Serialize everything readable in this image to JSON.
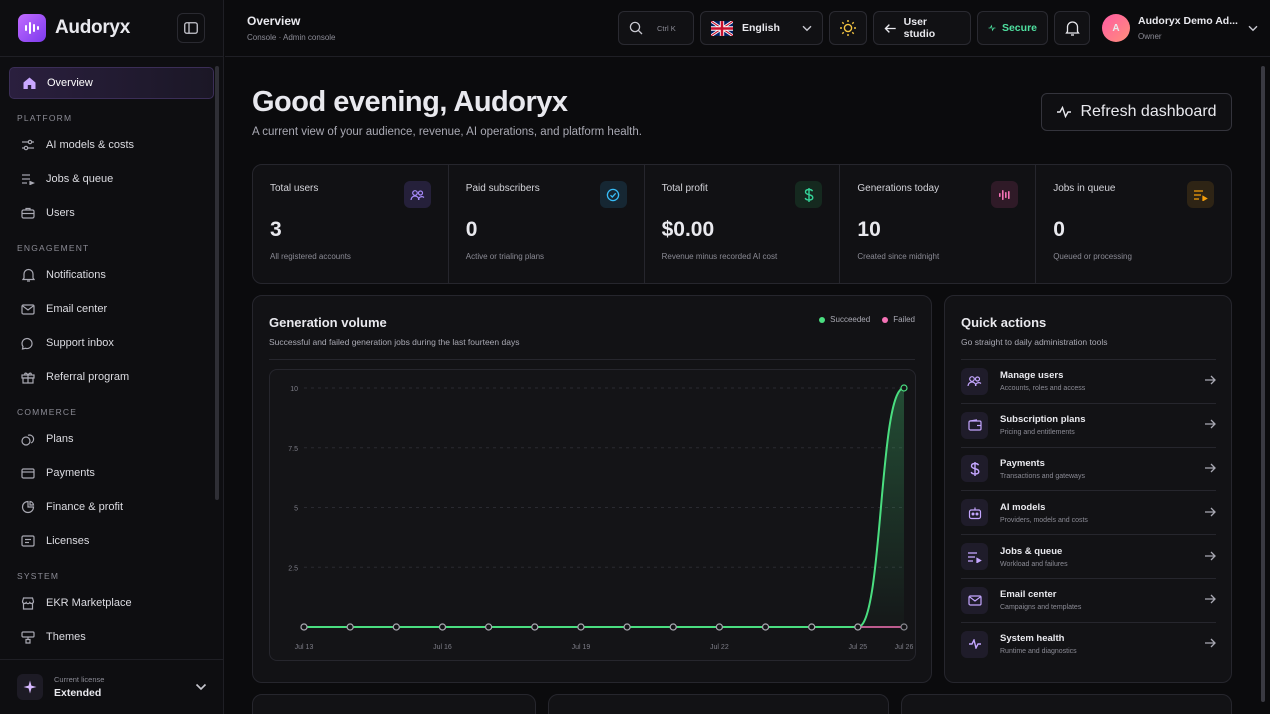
{
  "brand": {
    "name": "Audoryx"
  },
  "sidebar": {
    "overview": "Overview",
    "sections": [
      {
        "label": "PLATFORM",
        "items": [
          {
            "label": "AI models & costs",
            "icon": "sliders-icon"
          },
          {
            "label": "Jobs & queue",
            "icon": "queue-icon"
          },
          {
            "label": "Users",
            "icon": "briefcase-icon"
          }
        ]
      },
      {
        "label": "ENGAGEMENT",
        "items": [
          {
            "label": "Notifications",
            "icon": "bell-icon"
          },
          {
            "label": "Email center",
            "icon": "mail-icon"
          },
          {
            "label": "Support inbox",
            "icon": "chat-icon"
          },
          {
            "label": "Referral program",
            "icon": "gift-icon"
          }
        ]
      },
      {
        "label": "COMMERCE",
        "items": [
          {
            "label": "Plans",
            "icon": "coins-icon"
          },
          {
            "label": "Payments",
            "icon": "card-icon"
          },
          {
            "label": "Finance & profit",
            "icon": "chart-pie-icon"
          },
          {
            "label": "Licenses",
            "icon": "license-icon"
          }
        ]
      },
      {
        "label": "SYSTEM",
        "items": [
          {
            "label": "EKR Marketplace",
            "icon": "store-icon"
          },
          {
            "label": "Themes",
            "icon": "brush-icon"
          }
        ]
      }
    ],
    "license": {
      "caption": "Current license",
      "value": "Extended"
    }
  },
  "topbar": {
    "title": "Overview",
    "breadcrumb": "Console · Admin console",
    "search_shortcut": "Ctrl K",
    "language": "English",
    "user_studio": "User studio",
    "secure": "Secure",
    "user": {
      "initial": "A",
      "name": "Audoryx Demo Ad...",
      "role": "Owner"
    }
  },
  "page": {
    "greeting": "Good evening, Audoryx",
    "subtitle": "A current view of your audience, revenue, AI operations, and platform health.",
    "refresh": "Refresh dashboard"
  },
  "stats": [
    {
      "label": "Total users",
      "value": "3",
      "sub": "All registered accounts",
      "icon": "users-icon",
      "color": "#a78bfa",
      "bg": "#25203a"
    },
    {
      "label": "Paid subscribers",
      "value": "0",
      "sub": "Active or trialing plans",
      "icon": "check-badge-icon",
      "color": "#38bdf8",
      "bg": "#162733"
    },
    {
      "label": "Total profit",
      "value": "$0.00",
      "sub": "Revenue minus recorded AI cost",
      "icon": "dollar-icon",
      "color": "#34d399",
      "bg": "#15291f"
    },
    {
      "label": "Generations today",
      "value": "10",
      "sub": "Created since midnight",
      "icon": "waveform-icon",
      "color": "#f472b6",
      "bg": "#2f1a27"
    },
    {
      "label": "Jobs in queue",
      "value": "0",
      "sub": "Queued or processing",
      "icon": "list-play-icon",
      "color": "#f59e0b",
      "bg": "#2e2415"
    }
  ],
  "generation": {
    "title": "Generation volume",
    "subtitle": "Successful and failed generation jobs during the last fourteen days",
    "legend": {
      "succeeded": "Succeeded",
      "failed": "Failed"
    }
  },
  "chart_data": {
    "type": "line",
    "x": [
      "Jul 13",
      "Jul 14",
      "Jul 15",
      "Jul 16",
      "Jul 17",
      "Jul 18",
      "Jul 19",
      "Jul 20",
      "Jul 21",
      "Jul 22",
      "Jul 23",
      "Jul 24",
      "Jul 25",
      "Jul 26"
    ],
    "x_tick_labels": [
      "Jul 13",
      "Jul 16",
      "Jul 19",
      "Jul 22",
      "Jul 25",
      "Jul 26"
    ],
    "y_ticks": [
      "10",
      "7.5",
      "5",
      "2.5"
    ],
    "ylim": [
      0,
      10
    ],
    "series": [
      {
        "name": "Succeeded",
        "color": "#4ade80",
        "values": [
          0,
          0,
          0,
          0,
          0,
          0,
          0,
          0,
          0,
          0,
          0,
          0,
          0,
          10
        ]
      },
      {
        "name": "Failed",
        "color": "#f472b6",
        "values": [
          0,
          0,
          0,
          0,
          0,
          0,
          0,
          0,
          0,
          0,
          0,
          0,
          0,
          0
        ]
      }
    ],
    "grid": true,
    "legend": "top-right"
  },
  "quick_actions": {
    "title": "Quick actions",
    "subtitle": "Go straight to daily administration tools",
    "items": [
      {
        "name": "Manage users",
        "desc": "Accounts, roles and access",
        "icon": "users-icon"
      },
      {
        "name": "Subscription plans",
        "desc": "Pricing and entitlements",
        "icon": "wallet-icon"
      },
      {
        "name": "Payments",
        "desc": "Transactions and gateways",
        "icon": "dollar-icon"
      },
      {
        "name": "AI models",
        "desc": "Providers, models and costs",
        "icon": "robot-icon"
      },
      {
        "name": "Jobs & queue",
        "desc": "Workload and failures",
        "icon": "list-play-icon"
      },
      {
        "name": "Email center",
        "desc": "Campaigns and templates",
        "icon": "mail-icon"
      },
      {
        "name": "System health",
        "desc": "Runtime and diagnostics",
        "icon": "pulse-icon"
      }
    ]
  }
}
